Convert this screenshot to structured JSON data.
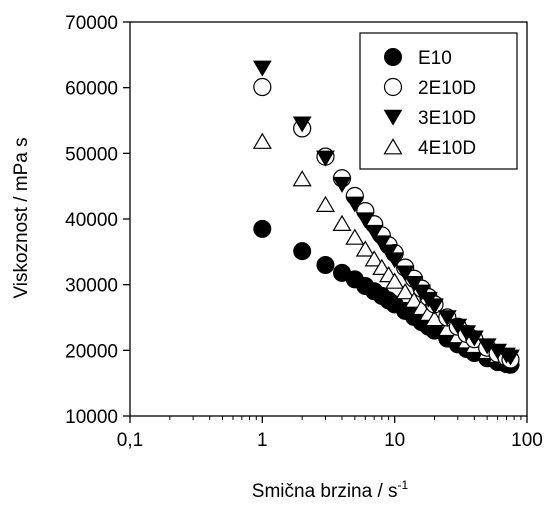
{
  "chart_data": {
    "type": "scatter",
    "title": "",
    "xlabel": "Smična brzina / s",
    "xlabel_sup": "-1",
    "ylabel": "Viskoznost / mPa s",
    "x_scale": "log",
    "xlim": [
      0.1,
      100
    ],
    "ylim": [
      10000,
      70000
    ],
    "x_ticks": [
      0.1,
      1,
      10,
      100
    ],
    "x_tick_labels": [
      "0,1",
      "1",
      "10",
      "100"
    ],
    "y_ticks": [
      10000,
      20000,
      30000,
      40000,
      50000,
      60000,
      70000
    ],
    "y_tick_labels": [
      "10000",
      "20000",
      "30000",
      "40000",
      "50000",
      "60000",
      "70000"
    ],
    "grid": false,
    "legend_position": "top-right",
    "series": [
      {
        "name": "E10",
        "marker": "filled-circle",
        "color": "#000000",
        "x": [
          1,
          2,
          3,
          4,
          5,
          6,
          7,
          8,
          9,
          10,
          12,
          14,
          16,
          18,
          20,
          25,
          30,
          35,
          40,
          50,
          60,
          70,
          75
        ],
        "y": [
          38500,
          35100,
          33000,
          31800,
          30800,
          29800,
          29000,
          28300,
          27600,
          27000,
          26000,
          25100,
          24300,
          23600,
          23000,
          21800,
          20900,
          20200,
          19600,
          18800,
          18200,
          17900,
          17800
        ]
      },
      {
        "name": "2E10D",
        "marker": "open-circle",
        "color": "#000000",
        "x": [
          1,
          2,
          3,
          4,
          5,
          6,
          7,
          8,
          9,
          10,
          12,
          14,
          16,
          18,
          20,
          25,
          30,
          35,
          40,
          50,
          60,
          70,
          75
        ],
        "y": [
          60100,
          53800,
          49500,
          46200,
          43500,
          41200,
          39200,
          37500,
          36000,
          34800,
          32600,
          30900,
          29400,
          28100,
          27000,
          25000,
          23600,
          22500,
          21700,
          20400,
          19500,
          18900,
          18600
        ]
      },
      {
        "name": "3E10D",
        "marker": "filled-triangle-down",
        "color": "#000000",
        "x": [
          1,
          2,
          3,
          4,
          5,
          6,
          7,
          8,
          9,
          10,
          12,
          14,
          16,
          18,
          20,
          25,
          30,
          35,
          40,
          50,
          60,
          70,
          75
        ],
        "y": [
          63000,
          54500,
          49300,
          45300,
          42300,
          39900,
          38000,
          36400,
          35000,
          33800,
          31800,
          30200,
          28900,
          27800,
          26800,
          25000,
          23700,
          22700,
          21900,
          20700,
          19900,
          19300,
          19000
        ]
      },
      {
        "name": "4E10D",
        "marker": "open-triangle-up",
        "color": "#000000",
        "x": [
          1,
          2,
          3,
          4,
          5,
          6,
          7,
          8,
          9,
          10,
          12,
          14,
          16,
          18,
          20,
          25,
          30,
          35,
          40,
          50,
          60,
          70,
          75
        ],
        "y": [
          51800,
          46100,
          42200,
          39300,
          37200,
          35400,
          33900,
          32600,
          31500,
          30500,
          28900,
          27600,
          26500,
          25600,
          24800,
          23300,
          22200,
          21400,
          20700,
          19800,
          19200,
          18900,
          18800
        ]
      }
    ]
  }
}
